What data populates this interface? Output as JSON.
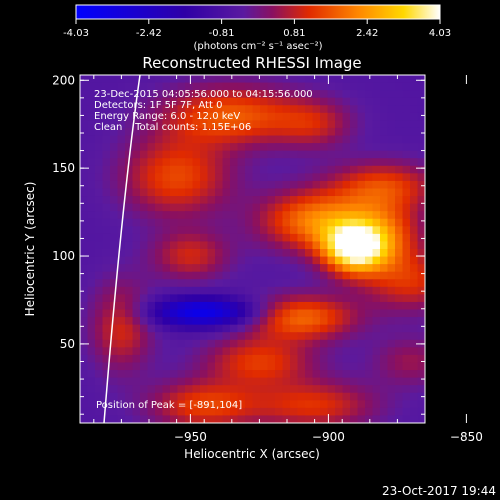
{
  "colorbar": {
    "ticks": [
      "-4.03",
      "-2.42",
      "-0.81",
      "0.81",
      "2.42",
      "4.03"
    ],
    "min": -4.03,
    "max": 4.03,
    "unit_label": "(photons cm⁻² s⁻¹ asec⁻²)"
  },
  "chart_data": {
    "type": "heatmap",
    "title": "Reconstructed RHESSI Image",
    "xlabel": "Heliocentric X (arcsec)",
    "ylabel": "Heliocentric Y (arcsec)",
    "xlim": [
      -990,
      -865
    ],
    "ylim": [
      5,
      203
    ],
    "xticks": [
      -950,
      -900,
      -850
    ],
    "yticks": [
      50,
      100,
      150,
      200
    ],
    "info_lines": [
      "23-Dec-2015 04:05:56.000 to 04:15:56.000",
      "Detectors: 1F 5F 7F, Att 0",
      "Energy Range: 6.0 - 12.0 keV",
      "Clean    Total counts: 1.15E+06"
    ],
    "peak_label": "Position of Peak = [-891,104]",
    "peak": [
      -891,
      104
    ],
    "sources": [
      {
        "x": -891,
        "y": 104,
        "amp": 4.03,
        "sx": 8,
        "sy": 10
      },
      {
        "x": -905,
        "y": 120,
        "amp": 2.6,
        "sx": 14,
        "sy": 12
      },
      {
        "x": -880,
        "y": 112,
        "amp": 2.0,
        "sx": 10,
        "sy": 14
      },
      {
        "x": -935,
        "y": 180,
        "amp": 2.2,
        "sx": 18,
        "sy": 12
      },
      {
        "x": -955,
        "y": 145,
        "amp": 2.0,
        "sx": 14,
        "sy": 16
      },
      {
        "x": -880,
        "y": 140,
        "amp": 1.8,
        "sx": 14,
        "sy": 10
      },
      {
        "x": -870,
        "y": 85,
        "amp": 1.6,
        "sx": 12,
        "sy": 12
      },
      {
        "x": -950,
        "y": 100,
        "amp": 1.5,
        "sx": 10,
        "sy": 10
      },
      {
        "x": -910,
        "y": 65,
        "amp": 2.4,
        "sx": 14,
        "sy": 9
      },
      {
        "x": -925,
        "y": 40,
        "amp": 1.8,
        "sx": 14,
        "sy": 10
      },
      {
        "x": -905,
        "y": 15,
        "amp": 1.7,
        "sx": 16,
        "sy": 10
      },
      {
        "x": -945,
        "y": 15,
        "amp": 1.9,
        "sx": 14,
        "sy": 10
      },
      {
        "x": -975,
        "y": 60,
        "amp": 1.6,
        "sx": 8,
        "sy": 18
      },
      {
        "x": -945,
        "y": 68,
        "amp": -3.0,
        "sx": 14,
        "sy": 6
      },
      {
        "x": -905,
        "y": 175,
        "amp": 1.2,
        "sx": 10,
        "sy": 10
      },
      {
        "x": -870,
        "y": 40,
        "amp": 1.0,
        "sx": 10,
        "sy": 10
      }
    ],
    "colormap": [
      [
        0.0,
        "#0000ff"
      ],
      [
        0.3,
        "#2f00a6"
      ],
      [
        0.46,
        "#5a1aa0"
      ],
      [
        0.54,
        "#8a1060"
      ],
      [
        0.64,
        "#e02a00"
      ],
      [
        0.78,
        "#ff8a00"
      ],
      [
        0.9,
        "#ffd800"
      ],
      [
        1.0,
        "#ffffff"
      ]
    ]
  },
  "timestamp": "23-Oct-2017 19:44"
}
